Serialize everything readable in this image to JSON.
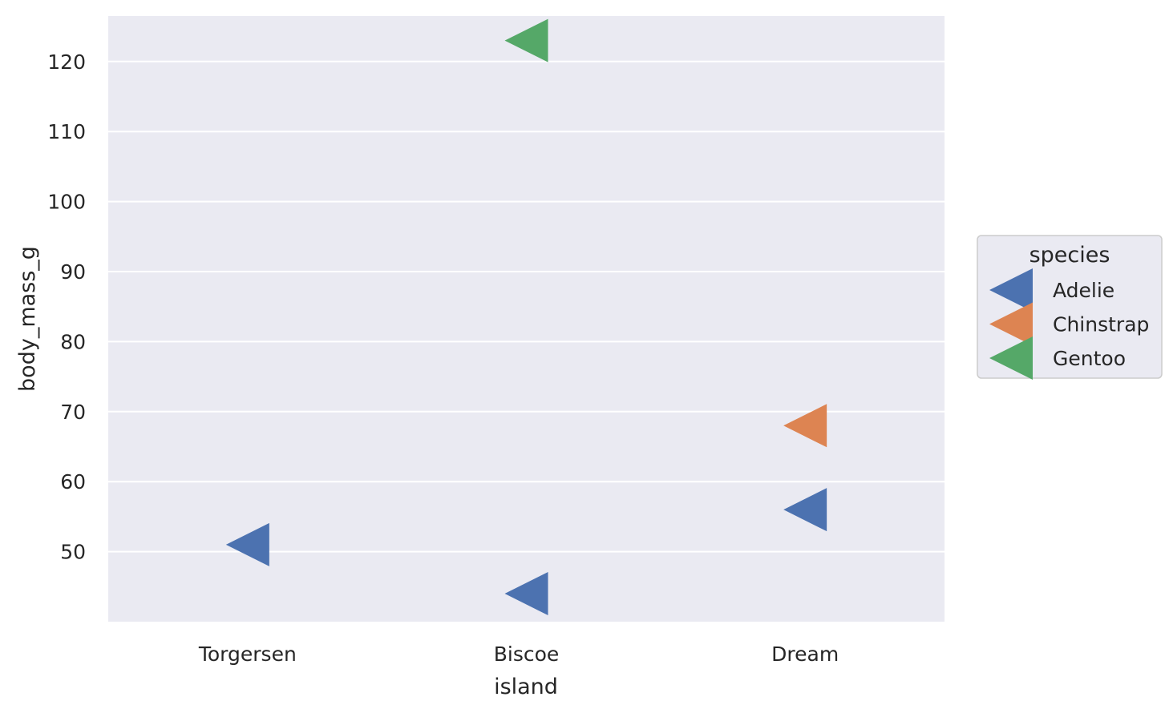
{
  "chart_data": {
    "type": "scatter",
    "marker": "left-triangle",
    "xlabel": "island",
    "ylabel": "body_mass_g",
    "categories": [
      "Torgersen",
      "Biscoe",
      "Dream"
    ],
    "yticks": [
      50,
      60,
      70,
      80,
      90,
      100,
      110,
      120
    ],
    "ylim": [
      40,
      126.5
    ],
    "grid": true,
    "legend": {
      "title": "species",
      "placement": "right"
    },
    "series": [
      {
        "name": "Adelie",
        "color": "#4c72b0",
        "points": [
          {
            "x": "Torgersen",
            "y": 51
          },
          {
            "x": "Biscoe",
            "y": 44
          },
          {
            "x": "Dream",
            "y": 56
          }
        ]
      },
      {
        "name": "Chinstrap",
        "color": "#dd8452",
        "points": [
          {
            "x": "Dream",
            "y": 68
          }
        ]
      },
      {
        "name": "Gentoo",
        "color": "#55a868",
        "points": [
          {
            "x": "Biscoe",
            "y": 123
          }
        ]
      }
    ]
  }
}
